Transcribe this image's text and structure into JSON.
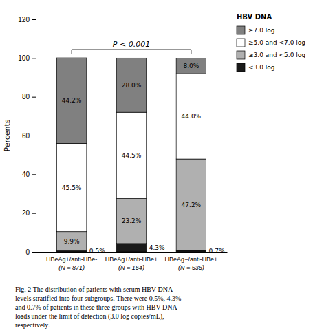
{
  "chart_data": {
    "type": "bar",
    "stacked": true,
    "data_labels": true,
    "grid": false,
    "legend": "right",
    "categories": [
      "HBeAg+/anti-HBe-\n(N = 871)",
      "HBeAg+/anti-HBe+\n(N = 164)",
      "HBeAg−/anti-HBe+\n(N = 536)"
    ],
    "series": [
      {
        "name": "<3.0 log",
        "color": "#1a1a1a",
        "values": [
          0.5,
          4.3,
          0.7
        ],
        "value_labels": [
          "0.5%",
          "4.3%",
          "0.7%"
        ]
      },
      {
        "name": "≥3.0 and <5.0 log",
        "color": "#b0b0b0",
        "values": [
          9.9,
          23.2,
          47.2
        ],
        "value_labels": [
          "9.9%",
          "23.2%",
          "47.2%"
        ]
      },
      {
        "name": "≥5.0 and <7.0 log",
        "color": "#ffffff",
        "values": [
          45.5,
          44.5,
          44.0
        ],
        "value_labels": [
          "45.5%",
          "44.5%",
          "44.0%"
        ]
      },
      {
        "name": "≥7.0 log",
        "color": "#808080",
        "values": [
          44.2,
          28.0,
          8.0
        ],
        "value_labels": [
          "44.2%",
          "28.0%",
          "8.0%"
        ]
      }
    ],
    "legend_title": "HBV DNA",
    "ylabel": "Percents",
    "ylim": [
      0,
      120
    ],
    "yticks": [
      0,
      20,
      40,
      60,
      80,
      100,
      120
    ],
    "annotations": [
      {
        "text": "P < 0.001"
      }
    ],
    "caption": [
      "Fig. 2  The distribution of patients with serum HBV-DNA",
      "levels stratified into four subgroups. There were 0.5%, 4.3%",
      "and 0.7% of patients in these three groups with HBV-DNA",
      "loads under the limit of detection (3.0 log copies/mL),",
      "respectively."
    ]
  }
}
